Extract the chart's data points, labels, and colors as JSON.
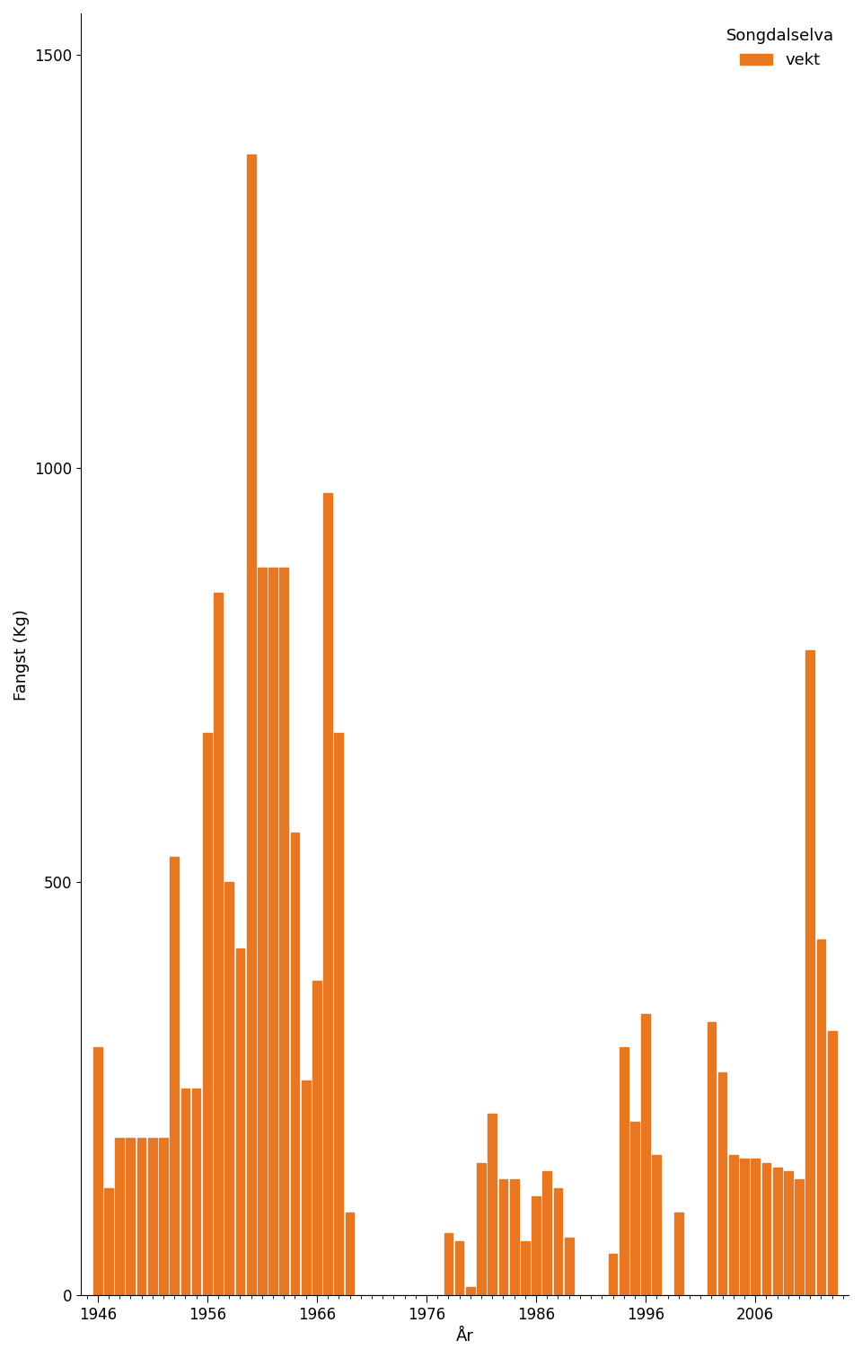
{
  "years": [
    1946,
    1947,
    1948,
    1949,
    1950,
    1951,
    1952,
    1953,
    1954,
    1955,
    1956,
    1957,
    1958,
    1959,
    1960,
    1961,
    1962,
    1963,
    1964,
    1965,
    1966,
    1967,
    1968,
    1969,
    1970,
    1971,
    1972,
    1973,
    1974,
    1975,
    1976,
    1977,
    1978,
    1979,
    1980,
    1981,
    1982,
    1983,
    1984,
    1985,
    1986,
    1987,
    1988,
    1989,
    1990,
    1991,
    1992,
    1993,
    1994,
    1995,
    1996,
    1997,
    1998,
    1999,
    2000,
    2001,
    2002,
    2003,
    2004,
    2005,
    2006,
    2007,
    2008,
    2009,
    2010,
    2011,
    2012,
    2013
  ],
  "values": [
    300,
    130,
    190,
    190,
    190,
    190,
    190,
    530,
    250,
    250,
    680,
    850,
    500,
    420,
    1380,
    880,
    880,
    880,
    560,
    260,
    380,
    970,
    680,
    100,
    0,
    0,
    0,
    0,
    0,
    0,
    0,
    0,
    75,
    65,
    10,
    160,
    220,
    140,
    140,
    65,
    120,
    150,
    130,
    70,
    0,
    0,
    0,
    50,
    300,
    210,
    340,
    170,
    0,
    100,
    0,
    0,
    330,
    270,
    170,
    165,
    165,
    160,
    155,
    150,
    140,
    780,
    430,
    320
  ],
  "bar_color": "#E87722",
  "ylabel": "Fangst (Kg)",
  "xlabel": "År",
  "ylim": [
    0,
    1550
  ],
  "yticks": [
    0,
    500,
    1000,
    1500
  ],
  "xtick_years": [
    1946,
    1956,
    1966,
    1976,
    1986,
    1996,
    2006
  ],
  "legend_label": "vekt",
  "legend_title": "Songdalselva",
  "background_color": "#ffffff",
  "tick_fontsize": 12,
  "label_fontsize": 13
}
